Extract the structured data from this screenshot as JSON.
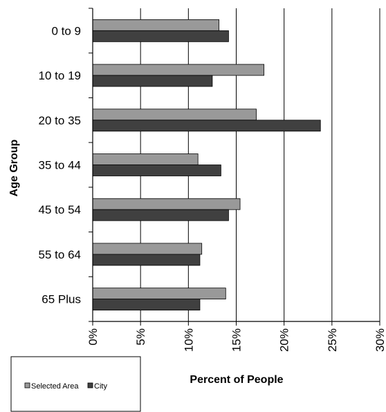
{
  "chart_data": {
    "type": "bar",
    "orientation": "horizontal",
    "categories": [
      "0 to 9",
      "10 to 19",
      "20 to 35",
      "35 to 44",
      "45 to 54",
      "55 to 64",
      "65 Plus"
    ],
    "series": [
      {
        "name": "Selected Area",
        "values": [
          13.2,
          17.9,
          17.1,
          11.0,
          15.4,
          11.4,
          13.9
        ]
      },
      {
        "name": "City",
        "values": [
          14.2,
          12.5,
          23.8,
          13.4,
          14.2,
          11.2,
          11.2
        ]
      }
    ],
    "xlabel": "Percent of People",
    "ylabel": "Age Group",
    "xlim": [
      0,
      30
    ],
    "xticks": [
      "0%",
      "5%",
      "10%",
      "15%",
      "20%",
      "25%",
      "30%"
    ],
    "grid": true,
    "legend_position": "bottom-left",
    "colors": {
      "Selected Area": "#999999",
      "City": "#404040",
      "gridline": "#000000"
    }
  }
}
